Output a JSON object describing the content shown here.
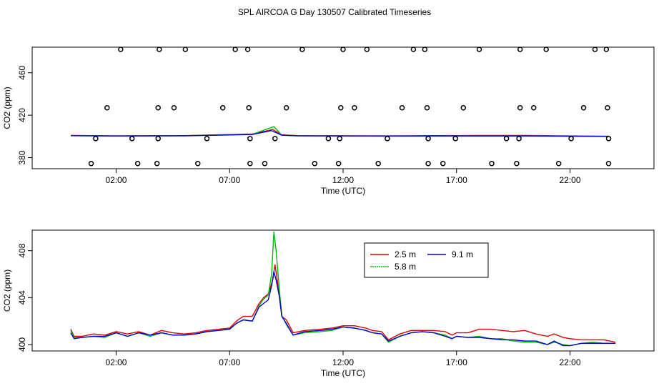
{
  "title": "SPL AIRCOA G  Day 130507  Calibrated Timeseries",
  "chart_data": [
    {
      "type": "scatter+line",
      "name": "top-panel",
      "xlabel": "Time (UTC)",
      "ylabel": "CO2 (ppm)",
      "xlim": [
        -1.7,
        25.7
      ],
      "ylim": [
        369.6,
        484.1
      ],
      "x_ticks": [
        2,
        7,
        12,
        17,
        22
      ],
      "x_tick_labels": [
        "02:00",
        "07:00",
        "12:00",
        "17:00",
        "22:00"
      ],
      "y_ticks": [
        380,
        420,
        460
      ],
      "y_tick_labels": [
        "380",
        "420",
        "460"
      ],
      "scatter_points": [
        [
          0.9,
          374.5
        ],
        [
          2.2,
          482
        ],
        [
          3.9,
          482
        ],
        [
          5.05,
          482
        ],
        [
          7.25,
          482
        ],
        [
          7.8,
          482
        ],
        [
          10.2,
          482
        ],
        [
          12.0,
          482
        ],
        [
          13.05,
          482
        ],
        [
          15.1,
          482
        ],
        [
          15.6,
          482
        ],
        [
          18.0,
          482
        ],
        [
          19.8,
          482
        ],
        [
          20.95,
          482
        ],
        [
          23.1,
          482
        ],
        [
          23.6,
          482
        ],
        [
          1.6,
          427
        ],
        [
          3.85,
          427
        ],
        [
          4.55,
          427
        ],
        [
          6.7,
          427
        ],
        [
          7.85,
          427
        ],
        [
          9.5,
          427
        ],
        [
          11.9,
          427
        ],
        [
          12.5,
          427
        ],
        [
          14.6,
          427
        ],
        [
          15.7,
          427
        ],
        [
          17.3,
          427
        ],
        [
          19.8,
          427
        ],
        [
          20.4,
          427
        ],
        [
          22.6,
          427
        ],
        [
          23.65,
          427
        ],
        [
          1.1,
          398
        ],
        [
          2.7,
          398
        ],
        [
          3.85,
          398
        ],
        [
          6.0,
          398
        ],
        [
          7.9,
          398
        ],
        [
          9.0,
          398
        ],
        [
          11.35,
          398
        ],
        [
          11.85,
          398
        ],
        [
          13.95,
          398
        ],
        [
          15.75,
          398
        ],
        [
          16.95,
          398
        ],
        [
          19.2,
          398
        ],
        [
          19.75,
          398
        ],
        [
          22.05,
          398
        ],
        [
          23.7,
          398
        ],
        [
          2.95,
          374.5
        ],
        [
          3.8,
          374.5
        ],
        [
          5.6,
          374.5
        ],
        [
          7.9,
          374.5
        ],
        [
          8.55,
          374.5
        ],
        [
          10.75,
          374.5
        ],
        [
          11.8,
          374.5
        ],
        [
          13.55,
          374.5
        ],
        [
          15.75,
          374.5
        ],
        [
          16.4,
          374.5
        ],
        [
          18.55,
          374.5
        ],
        [
          19.65,
          374.5
        ],
        [
          21.5,
          374.5
        ],
        [
          23.7,
          374.5
        ]
      ],
      "series": [
        {
          "name": "2.5 m",
          "color": "#dd0000",
          "x": [
            0,
            2,
            5,
            8,
            8.9,
            9.3,
            10,
            14,
            18,
            20,
            23.7
          ],
          "y": [
            401,
            400.6,
            400.8,
            402.3,
            406.5,
            401.5,
            400.8,
            400.6,
            400.9,
            401,
            400.2
          ]
        },
        {
          "name": "5.8 m",
          "color": "#00bb00",
          "x": [
            0,
            2,
            5,
            8,
            8.95,
            9.3,
            10,
            14,
            18,
            20,
            23.7
          ],
          "y": [
            400.8,
            400.5,
            400.7,
            402,
            409.3,
            401.2,
            400.6,
            400.4,
            400.5,
            400.5,
            400.1
          ]
        },
        {
          "name": "9.1 m",
          "color": "#0000cc",
          "x": [
            0,
            2,
            5,
            8,
            8.85,
            9.3,
            10,
            14,
            18,
            20,
            23.7
          ],
          "y": [
            400.7,
            400.4,
            400.6,
            401.8,
            405.5,
            401.1,
            400.5,
            400.3,
            400.4,
            400.4,
            400
          ]
        }
      ]
    },
    {
      "type": "line",
      "name": "bottom-panel",
      "xlabel": "Time (UTC)",
      "ylabel": "CO2 (ppm)",
      "xlim": [
        -1.7,
        25.7
      ],
      "ylim": [
        399.45,
        409.75
      ],
      "x_ticks": [
        2,
        7,
        12,
        17,
        22
      ],
      "x_tick_labels": [
        "02:00",
        "07:00",
        "12:00",
        "17:00",
        "22:00"
      ],
      "y_ticks": [
        400,
        404,
        408
      ],
      "y_tick_labels": [
        "400",
        "404",
        "408"
      ],
      "legend": {
        "placement": "top-right-center",
        "entries": [
          "2.5 m",
          "9.1 m",
          "5.8 m"
        ]
      },
      "series": [
        {
          "name": "2.5 m",
          "color": "#dd0000",
          "x": [
            0,
            0.15,
            0.5,
            1,
            1.5,
            2,
            2.5,
            3,
            3.5,
            4,
            4.5,
            5,
            5.5,
            6,
            6.5,
            7,
            7.3,
            7.6,
            8,
            8.3,
            8.5,
            8.7,
            8.9,
            9.0,
            9.1,
            9.3,
            9.5,
            9.8,
            10.3,
            11,
            11.5,
            12,
            12.5,
            13,
            13.3,
            13.7,
            14,
            14.5,
            15,
            15.5,
            16,
            16.5,
            16.8,
            17,
            17.5,
            18,
            18.5,
            19,
            19.5,
            20,
            20.5,
            21,
            21.3,
            21.7,
            22,
            22.5,
            23,
            23.5,
            24
          ],
          "y": [
            401.3,
            400.7,
            400.7,
            400.9,
            400.8,
            401.1,
            400.9,
            401.1,
            400.8,
            401.2,
            401.0,
            400.9,
            401.0,
            401.2,
            401.3,
            401.4,
            402.0,
            402.4,
            402.4,
            403.5,
            404.0,
            404.3,
            405.5,
            406.8,
            405.5,
            402.4,
            402.1,
            401.0,
            401.2,
            401.3,
            401.4,
            401.6,
            401.6,
            401.4,
            401.2,
            401.1,
            400.4,
            400.9,
            401.2,
            401.2,
            401.2,
            401.1,
            400.8,
            401.0,
            401.0,
            401.3,
            401.3,
            401.2,
            401.1,
            401.2,
            400.9,
            400.7,
            400.9,
            400.6,
            400.5,
            400.4,
            400.4,
            400.4,
            400.2
          ]
        },
        {
          "name": "5.8 m",
          "color": "#00bb00",
          "x": [
            0,
            0.15,
            0.5,
            1,
            1.5,
            2,
            2.5,
            3,
            3.5,
            4,
            4.5,
            5,
            5.5,
            6,
            6.5,
            7,
            7.3,
            7.6,
            8,
            8.3,
            8.5,
            8.7,
            8.85,
            8.95,
            9.05,
            9.2,
            9.3,
            9.5,
            9.8,
            10.3,
            11,
            11.5,
            12,
            12.5,
            13,
            13.3,
            13.7,
            14,
            14.5,
            15,
            15.5,
            16,
            16.5,
            16.8,
            17,
            17.5,
            18,
            18.5,
            19,
            19.5,
            20,
            20.5,
            21,
            21.3,
            21.7,
            22,
            22.5,
            23,
            23.5,
            24
          ],
          "y": [
            401.2,
            400.6,
            400.6,
            400.7,
            400.6,
            401.0,
            400.7,
            401.0,
            400.7,
            401.0,
            400.8,
            400.8,
            400.9,
            401.1,
            401.2,
            401.3,
            401.8,
            402.1,
            402.0,
            403.3,
            403.9,
            404.2,
            406.0,
            409.6,
            408.0,
            404.5,
            402.5,
            401.7,
            400.8,
            401.0,
            401.1,
            401.2,
            401.5,
            401.4,
            401.2,
            401.0,
            400.9,
            400.2,
            400.7,
            401.0,
            401.1,
            401.0,
            400.8,
            400.5,
            400.7,
            400.6,
            400.7,
            400.5,
            400.5,
            400.3,
            400.2,
            400.2,
            400.0,
            400.2,
            400.0,
            399.9,
            400.1,
            400.2,
            400.1,
            400.1
          ]
        },
        {
          "name": "9.1 m",
          "color": "#0000cc",
          "x": [
            0,
            0.15,
            0.5,
            1,
            1.5,
            2,
            2.5,
            3,
            3.5,
            4,
            4.5,
            5,
            5.5,
            6,
            6.5,
            7,
            7.3,
            7.6,
            8,
            8.3,
            8.5,
            8.7,
            8.85,
            8.95,
            9.05,
            9.2,
            9.3,
            9.5,
            9.8,
            10.3,
            11,
            11.5,
            12,
            12.5,
            13,
            13.3,
            13.7,
            14,
            14.5,
            15,
            15.5,
            16,
            16.5,
            16.8,
            17,
            17.5,
            18,
            18.5,
            19,
            19.5,
            20,
            20.5,
            21,
            21.3,
            21.7,
            22,
            22.5,
            23,
            23.5,
            24
          ],
          "y": [
            401.0,
            400.5,
            400.6,
            400.7,
            400.7,
            401.0,
            400.7,
            401.0,
            400.8,
            401.0,
            400.8,
            400.8,
            400.9,
            401.1,
            401.2,
            401.3,
            401.8,
            402.1,
            402.0,
            403.2,
            403.5,
            403.8,
            405.0,
            406.2,
            405.5,
            404.0,
            402.4,
            401.8,
            400.8,
            401.1,
            401.2,
            401.3,
            401.5,
            401.4,
            401.2,
            401.0,
            400.9,
            400.3,
            400.7,
            401.0,
            401.1,
            401.0,
            400.7,
            400.5,
            400.7,
            400.6,
            400.6,
            400.5,
            400.4,
            400.4,
            400.3,
            400.3,
            400.0,
            400.3,
            399.9,
            399.9,
            400.1,
            400.1,
            400.1,
            400.1
          ]
        }
      ]
    }
  ]
}
